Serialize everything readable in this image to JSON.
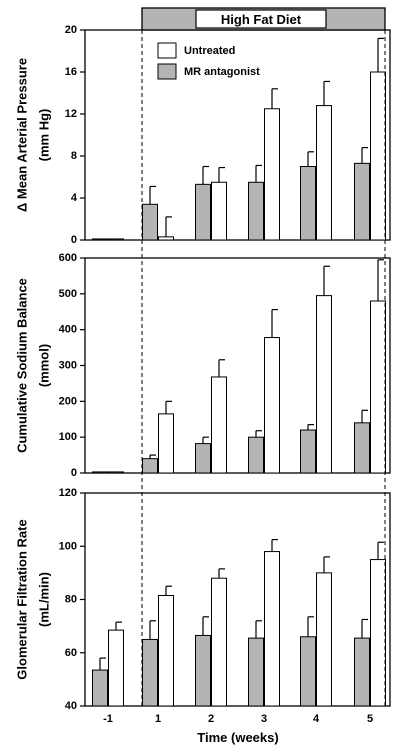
{
  "banner": {
    "label": "High Fat Diet",
    "fill": "#b4b4b4"
  },
  "colors": {
    "treated": "#b4b4b4",
    "untreated": "#ffffff",
    "stroke": "#000000"
  },
  "chart_data": [
    {
      "type": "bar",
      "categories": [
        "-1",
        "1",
        "2",
        "3",
        "4",
        "5"
      ],
      "ylabel": [
        "Δ Mean Arterial Pressure",
        "(mm Hg)"
      ],
      "ylim": [
        0,
        20
      ],
      "yticks": [
        0,
        4,
        8,
        12,
        16,
        20
      ],
      "legend": {
        "placement": "top-left",
        "items": [
          "Untreated",
          "MR antagonist"
        ]
      },
      "series": [
        {
          "name": "MR antagonist",
          "color": "#b4b4b4",
          "values": [
            0.1,
            3.4,
            5.3,
            5.5,
            7.0,
            7.3
          ],
          "errors": [
            0,
            1.7,
            1.7,
            1.6,
            1.4,
            1.5
          ]
        },
        {
          "name": "Untreated",
          "color": "#ffffff",
          "values": [
            0.1,
            0.3,
            5.5,
            12.5,
            12.8,
            16.0
          ],
          "errors": [
            0,
            1.9,
            1.4,
            1.9,
            2.3,
            3.2
          ]
        }
      ]
    },
    {
      "type": "bar",
      "categories": [
        "-1",
        "1",
        "2",
        "3",
        "4",
        "5"
      ],
      "ylabel": [
        "Cumulative Sodium Balance",
        "(mmol)"
      ],
      "ylim": [
        0,
        600
      ],
      "yticks": [
        0,
        100,
        200,
        300,
        400,
        500,
        600
      ],
      "series": [
        {
          "name": "MR antagonist",
          "color": "#b4b4b4",
          "values": [
            3,
            40,
            82,
            100,
            120,
            140
          ],
          "errors": [
            0,
            10,
            18,
            18,
            15,
            35
          ]
        },
        {
          "name": "Untreated",
          "color": "#ffffff",
          "values": [
            3,
            165,
            268,
            378,
            495,
            480
          ],
          "errors": [
            0,
            35,
            48,
            78,
            82,
            115
          ]
        }
      ]
    },
    {
      "type": "bar",
      "categories": [
        "-1",
        "1",
        "2",
        "3",
        "4",
        "5"
      ],
      "xlabel": "Time (weeks)",
      "ylabel": [
        "Glomerular Filtration Rate",
        "(mL/min)"
      ],
      "ylim": [
        40,
        120
      ],
      "yticks": [
        40,
        60,
        80,
        100,
        120
      ],
      "series": [
        {
          "name": "MR antagonist",
          "color": "#b4b4b4",
          "values": [
            53.5,
            65,
            66.5,
            65.5,
            66,
            65.5
          ],
          "errors": [
            4.5,
            7,
            7,
            6.5,
            7.5,
            7
          ]
        },
        {
          "name": "Untreated",
          "color": "#ffffff",
          "values": [
            68.5,
            81.5,
            88,
            98,
            90,
            95
          ],
          "errors": [
            3,
            3.5,
            3.5,
            4.5,
            6,
            6.5
          ]
        }
      ]
    }
  ]
}
